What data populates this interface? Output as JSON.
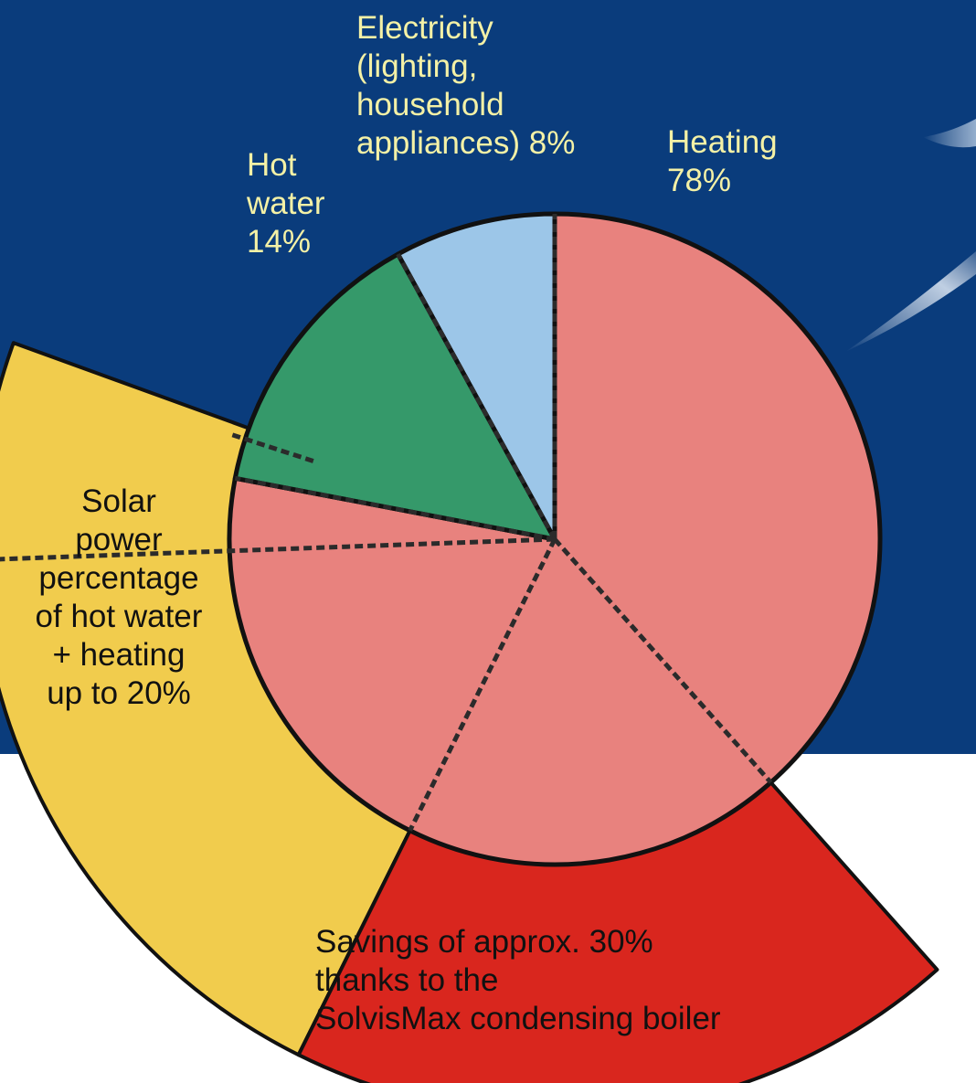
{
  "chart_data": {
    "type": "pie",
    "slices": [
      {
        "name": "heating",
        "label_lines": [
          "Heating",
          "78%"
        ],
        "value": 78,
        "color": "#e8827e"
      },
      {
        "name": "hot-water",
        "label_lines": [
          "Hot",
          "water",
          "14%"
        ],
        "value": 14,
        "color": "#35996a"
      },
      {
        "name": "electricity",
        "label_lines": [
          "Electricity",
          "(lighting,",
          "household",
          "appliances) 8%"
        ],
        "value": 8,
        "color": "#9cc6e8"
      }
    ],
    "outer_ring": [
      {
        "name": "solar",
        "label_lines": [
          "Solar",
          "power",
          "percentage",
          "of hot water",
          "+ heating",
          "up to 20%"
        ],
        "value": 20,
        "color": "#f1cc4d"
      },
      {
        "name": "savings",
        "label_lines": [
          "Savings of approx. 30%",
          "thanks to the",
          "SolvisMax condensing boiler"
        ],
        "value": 30,
        "color": "#d9261e"
      }
    ]
  },
  "colors": {
    "background_top": "#0a3c7c",
    "background_bottom": "#ffffff",
    "label_on_blue": "#f4f1a6",
    "label_on_light": "#111111",
    "outline": "#111111"
  }
}
